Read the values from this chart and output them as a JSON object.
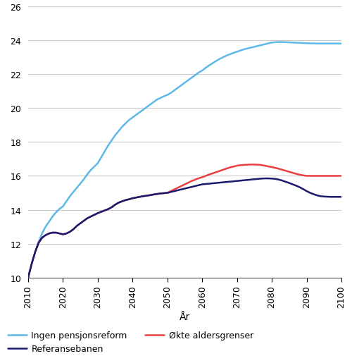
{
  "xlabel": "År",
  "ylabel": "",
  "xlim": [
    2010,
    2100
  ],
  "ylim": [
    10,
    26
  ],
  "yticks": [
    10,
    12,
    14,
    16,
    18,
    20,
    22,
    24,
    26
  ],
  "xticks": [
    2010,
    2020,
    2030,
    2040,
    2050,
    2060,
    2070,
    2080,
    2090,
    2100
  ],
  "ingen_pensjonsreform": {
    "x": [
      2010,
      2011,
      2012,
      2013,
      2014,
      2015,
      2016,
      2017,
      2018,
      2019,
      2020,
      2021,
      2022,
      2023,
      2024,
      2025,
      2026,
      2027,
      2028,
      2029,
      2030,
      2031,
      2032,
      2033,
      2034,
      2035,
      2036,
      2037,
      2038,
      2039,
      2040,
      2041,
      2042,
      2043,
      2044,
      2045,
      2046,
      2047,
      2048,
      2049,
      2050,
      2051,
      2052,
      2053,
      2054,
      2055,
      2056,
      2057,
      2058,
      2059,
      2060,
      2061,
      2062,
      2063,
      2064,
      2065,
      2066,
      2067,
      2068,
      2069,
      2070,
      2071,
      2072,
      2073,
      2074,
      2075,
      2076,
      2077,
      2078,
      2079,
      2080,
      2081,
      2082,
      2083,
      2084,
      2085,
      2086,
      2087,
      2088,
      2089,
      2090,
      2091,
      2092,
      2093,
      2094,
      2095,
      2096,
      2097,
      2098,
      2099,
      2100
    ],
    "y": [
      10.0,
      10.8,
      11.5,
      12.1,
      12.6,
      13.0,
      13.3,
      13.6,
      13.85,
      14.05,
      14.2,
      14.5,
      14.8,
      15.05,
      15.3,
      15.55,
      15.8,
      16.1,
      16.35,
      16.55,
      16.75,
      17.1,
      17.45,
      17.8,
      18.1,
      18.4,
      18.65,
      18.9,
      19.1,
      19.3,
      19.45,
      19.6,
      19.75,
      19.9,
      20.05,
      20.2,
      20.35,
      20.5,
      20.6,
      20.7,
      20.78,
      20.9,
      21.05,
      21.2,
      21.35,
      21.5,
      21.65,
      21.8,
      21.95,
      22.1,
      22.22,
      22.38,
      22.52,
      22.65,
      22.78,
      22.9,
      23.0,
      23.1,
      23.18,
      23.26,
      23.33,
      23.4,
      23.47,
      23.52,
      23.57,
      23.62,
      23.67,
      23.72,
      23.77,
      23.82,
      23.87,
      23.89,
      23.9,
      23.9,
      23.89,
      23.88,
      23.87,
      23.86,
      23.85,
      23.84,
      23.83,
      23.82,
      23.82,
      23.81,
      23.81,
      23.81,
      23.81,
      23.81,
      23.81,
      23.81,
      23.81
    ],
    "color": "#5fb8e8",
    "linewidth": 1.8,
    "label": "Ingen pensjonsreform"
  },
  "okte_aldersgrenser": {
    "x": [
      2010,
      2011,
      2012,
      2013,
      2014,
      2015,
      2016,
      2017,
      2018,
      2019,
      2020,
      2021,
      2022,
      2023,
      2024,
      2025,
      2026,
      2027,
      2028,
      2029,
      2030,
      2031,
      2032,
      2033,
      2034,
      2035,
      2036,
      2037,
      2038,
      2039,
      2040,
      2041,
      2042,
      2043,
      2044,
      2045,
      2046,
      2047,
      2048,
      2049,
      2050,
      2051,
      2052,
      2053,
      2054,
      2055,
      2056,
      2057,
      2058,
      2059,
      2060,
      2061,
      2062,
      2063,
      2064,
      2065,
      2066,
      2067,
      2068,
      2069,
      2070,
      2071,
      2072,
      2073,
      2074,
      2075,
      2076,
      2077,
      2078,
      2079,
      2080,
      2081,
      2082,
      2083,
      2084,
      2085,
      2086,
      2087,
      2088,
      2089,
      2090,
      2091,
      2092,
      2093,
      2094,
      2095,
      2096,
      2097,
      2098,
      2099,
      2100
    ],
    "y": [
      10.0,
      10.8,
      11.5,
      12.05,
      12.35,
      12.5,
      12.6,
      12.65,
      12.65,
      12.6,
      12.55,
      12.6,
      12.7,
      12.85,
      13.05,
      13.2,
      13.35,
      13.5,
      13.6,
      13.7,
      13.8,
      13.88,
      13.96,
      14.04,
      14.15,
      14.3,
      14.42,
      14.5,
      14.57,
      14.62,
      14.68,
      14.72,
      14.76,
      14.8,
      14.83,
      14.86,
      14.9,
      14.93,
      14.96,
      14.98,
      15.0,
      15.1,
      15.2,
      15.3,
      15.4,
      15.5,
      15.6,
      15.7,
      15.78,
      15.86,
      15.92,
      16.0,
      16.08,
      16.15,
      16.22,
      16.29,
      16.36,
      16.43,
      16.5,
      16.55,
      16.6,
      16.63,
      16.65,
      16.66,
      16.67,
      16.67,
      16.66,
      16.64,
      16.6,
      16.56,
      16.52,
      16.47,
      16.42,
      16.36,
      16.3,
      16.24,
      16.18,
      16.12,
      16.07,
      16.03,
      16.0,
      16.0,
      16.0,
      16.0,
      16.0,
      16.0,
      16.0,
      16.0,
      16.0,
      16.0,
      16.0
    ],
    "color": "#e84040",
    "linewidth": 1.8,
    "label": "Økte aldersgrenser"
  },
  "referansebanen": {
    "x": [
      2010,
      2011,
      2012,
      2013,
      2014,
      2015,
      2016,
      2017,
      2018,
      2019,
      2020,
      2021,
      2022,
      2023,
      2024,
      2025,
      2026,
      2027,
      2028,
      2029,
      2030,
      2031,
      2032,
      2033,
      2034,
      2035,
      2036,
      2037,
      2038,
      2039,
      2040,
      2041,
      2042,
      2043,
      2044,
      2045,
      2046,
      2047,
      2048,
      2049,
      2050,
      2051,
      2052,
      2053,
      2054,
      2055,
      2056,
      2057,
      2058,
      2059,
      2060,
      2061,
      2062,
      2063,
      2064,
      2065,
      2066,
      2067,
      2068,
      2069,
      2070,
      2071,
      2072,
      2073,
      2074,
      2075,
      2076,
      2077,
      2078,
      2079,
      2080,
      2081,
      2082,
      2083,
      2084,
      2085,
      2086,
      2087,
      2088,
      2089,
      2090,
      2091,
      2092,
      2093,
      2094,
      2095,
      2096,
      2097,
      2098,
      2099,
      2100
    ],
    "y": [
      10.0,
      10.8,
      11.5,
      12.05,
      12.35,
      12.5,
      12.6,
      12.65,
      12.65,
      12.6,
      12.55,
      12.6,
      12.7,
      12.85,
      13.05,
      13.2,
      13.35,
      13.5,
      13.6,
      13.7,
      13.8,
      13.88,
      13.96,
      14.04,
      14.15,
      14.3,
      14.42,
      14.5,
      14.57,
      14.62,
      14.68,
      14.72,
      14.76,
      14.8,
      14.83,
      14.86,
      14.9,
      14.93,
      14.96,
      14.98,
      15.0,
      15.05,
      15.1,
      15.15,
      15.2,
      15.25,
      15.3,
      15.35,
      15.4,
      15.45,
      15.5,
      15.52,
      15.54,
      15.56,
      15.58,
      15.6,
      15.62,
      15.64,
      15.66,
      15.68,
      15.7,
      15.72,
      15.74,
      15.76,
      15.78,
      15.8,
      15.82,
      15.84,
      15.85,
      15.85,
      15.84,
      15.82,
      15.78,
      15.72,
      15.65,
      15.58,
      15.5,
      15.42,
      15.33,
      15.22,
      15.1,
      15.0,
      14.92,
      14.85,
      14.8,
      14.78,
      14.77,
      14.76,
      14.76,
      14.76,
      14.76
    ],
    "color": "#1a1a6e",
    "linewidth": 1.8,
    "label": "Referansebanen"
  },
  "legend": {
    "ingen_label": "Ingen pensjonsreform",
    "okte_label": "Økte aldersgrenser",
    "ref_label": "Referansebanen"
  },
  "background_color": "#ffffff",
  "grid_color": "#cccccc"
}
